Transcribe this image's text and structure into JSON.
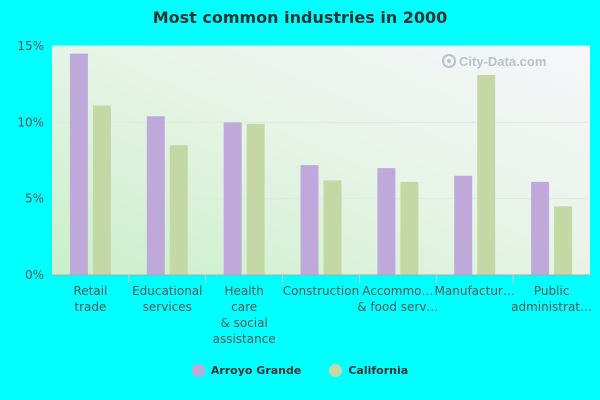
{
  "chart_data": {
    "type": "bar",
    "title": "Most common industries in 2000",
    "categories": [
      [
        "Retail",
        "trade"
      ],
      [
        "Educational",
        "services"
      ],
      [
        "Health",
        "care",
        "& social",
        "assistance"
      ],
      [
        "Construction"
      ],
      [
        "Accommo…",
        "& food serv…"
      ],
      [
        "Manufactur…"
      ],
      [
        "Public",
        "administrat…"
      ]
    ],
    "series": [
      {
        "name": "Arroyo Grande",
        "color": "#bfa9da",
        "values": [
          14.5,
          10.4,
          10.0,
          7.2,
          7.0,
          6.5,
          6.1
        ]
      },
      {
        "name": "California",
        "color": "#c4d8a6",
        "values": [
          11.1,
          8.5,
          9.9,
          6.2,
          6.1,
          13.1,
          4.5
        ]
      }
    ],
    "yticks": [
      "15%",
      "10%",
      "5%",
      "0%"
    ],
    "ytick_values": [
      15,
      10,
      5,
      0
    ],
    "ylim": [
      0,
      15
    ],
    "xlabel": "",
    "ylabel": "",
    "watermark": "City-Data.com"
  }
}
